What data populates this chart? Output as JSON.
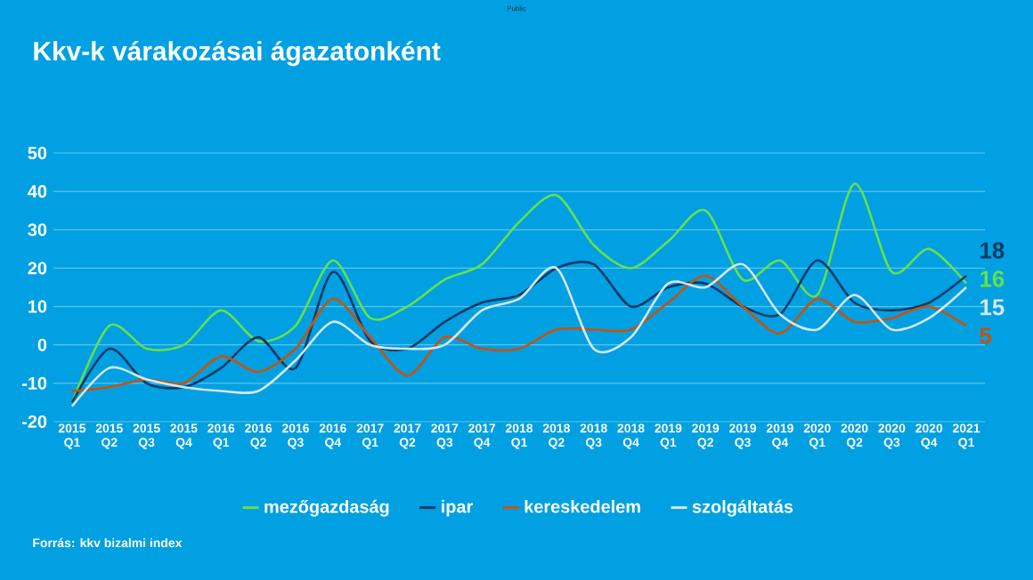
{
  "chart_data": {
    "type": "line",
    "title": "Kkv-k várakozásai ágazatonként",
    "annotations": [
      "Public",
      "Forrás: kkv bizalmi index"
    ],
    "categories": [
      "2015 Q1",
      "2015 Q2",
      "2015 Q3",
      "2015 Q4",
      "2016 Q1",
      "2016 Q2",
      "2016 Q3",
      "2016 Q4",
      "2017 Q1",
      "2017 Q2",
      "2017 Q3",
      "2017 Q4",
      "2018 Q1",
      "2018 Q2",
      "2018 Q3",
      "2018 Q4",
      "2019 Q1",
      "2019 Q2",
      "2019 Q3",
      "2019 Q4",
      "2020 Q1",
      "2020 Q2",
      "2020 Q3",
      "2020 Q4",
      "2021 Q1"
    ],
    "series": [
      {
        "name": "mezőgazdaság",
        "color": "#66e04a",
        "values": [
          -15,
          5,
          -1,
          0,
          9,
          1,
          5,
          22,
          7,
          10,
          17,
          21,
          32,
          39,
          26,
          20,
          27,
          35,
          17,
          22,
          13,
          42,
          19,
          25,
          16
        ],
        "value_labels": [
          null,
          null,
          null,
          null,
          null,
          null,
          null,
          null,
          null,
          null,
          null,
          null,
          null,
          null,
          null,
          null,
          null,
          null,
          null,
          null,
          null,
          null,
          null,
          null,
          "16"
        ]
      },
      {
        "name": "ipar",
        "color": "#0b3a66",
        "values": [
          -15,
          -1,
          -10,
          -11,
          -6,
          2,
          -6,
          19,
          1,
          -1,
          6,
          11,
          13,
          20,
          21,
          10,
          15,
          16,
          10,
          8,
          22,
          11,
          9,
          11,
          18
        ],
        "value_labels": [
          null,
          null,
          null,
          null,
          null,
          null,
          null,
          null,
          null,
          null,
          null,
          null,
          null,
          null,
          null,
          null,
          null,
          null,
          null,
          null,
          null,
          null,
          null,
          null,
          "18"
        ]
      },
      {
        "name": "kereskedelem",
        "color": "#c9520a",
        "values": [
          -12,
          -11,
          -9,
          -10,
          -3,
          -7,
          -1,
          12,
          2,
          -8,
          2,
          -1,
          -1,
          4,
          4,
          4,
          11,
          18,
          10,
          3,
          12,
          6,
          7,
          10,
          5
        ],
        "value_labels": [
          null,
          null,
          null,
          null,
          null,
          null,
          null,
          null,
          null,
          null,
          null,
          null,
          null,
          null,
          null,
          null,
          null,
          null,
          null,
          null,
          null,
          null,
          null,
          null,
          "5"
        ]
      },
      {
        "name": "szolgáltatás",
        "color": "#d6e6f2",
        "values": [
          -16,
          -6,
          -9,
          -11,
          -12,
          -12,
          -4,
          6,
          0,
          -1,
          0,
          9,
          12,
          20,
          -1,
          2,
          16,
          15,
          21,
          8,
          4,
          13,
          4,
          7,
          15
        ],
        "value_labels": [
          null,
          null,
          null,
          null,
          null,
          null,
          null,
          null,
          null,
          null,
          null,
          null,
          null,
          null,
          null,
          null,
          null,
          null,
          null,
          null,
          null,
          null,
          null,
          null,
          "15"
        ]
      }
    ],
    "ylim": [
      -20,
      50
    ],
    "yticks": [
      -20,
      -10,
      0,
      10,
      20,
      30,
      40,
      50
    ],
    "grid": "y",
    "legend": "bottom"
  }
}
